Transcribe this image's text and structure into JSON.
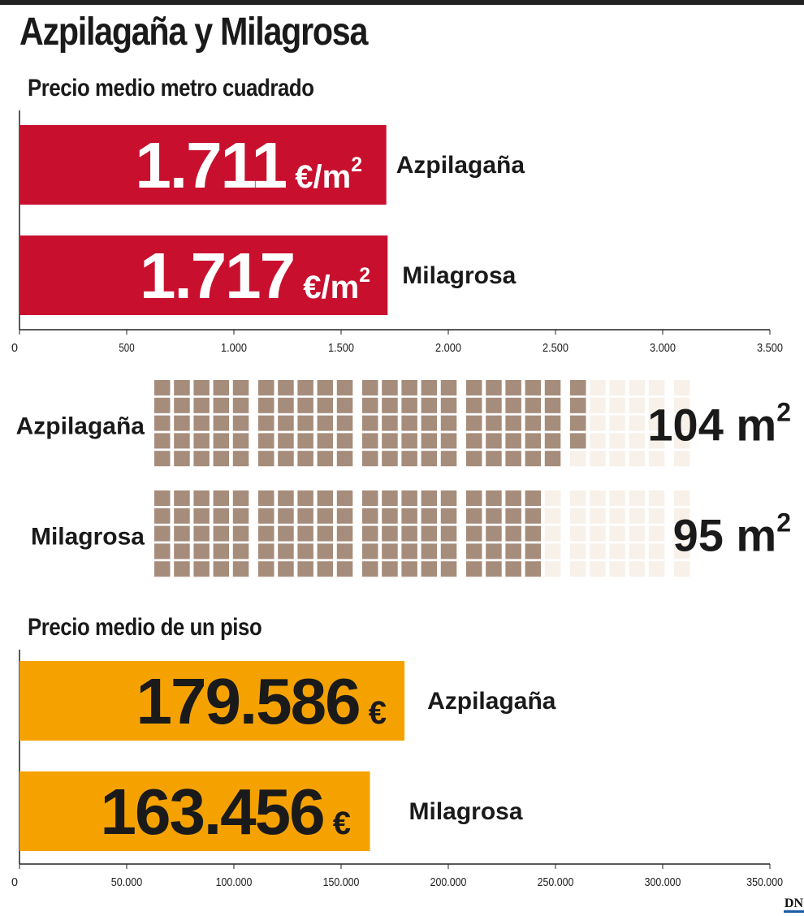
{
  "title": "Azpilagaña y Milagrosa",
  "colors": {
    "price_bar": "#c8102e",
    "flat_bar": "#f5a200",
    "area_filled": "#a68c7b",
    "area_empty": "#f7f1ea"
  },
  "logo": "DN",
  "chart_data": [
    {
      "type": "bar",
      "orientation": "horizontal",
      "title": "Precio medio metro cuadrado",
      "categories": [
        "Azpilagaña",
        "Milagrosa"
      ],
      "values": [
        1711,
        1717
      ],
      "value_labels": [
        "1.711",
        "1.717"
      ],
      "unit_label": "€/m",
      "unit_sup": "2",
      "xlim": [
        0,
        3500
      ],
      "xticks": [
        0,
        500,
        1000,
        1500,
        2000,
        2500,
        3000,
        3500
      ],
      "xtick_labels": [
        "0",
        "500",
        "1.000",
        "1.500",
        "2.000",
        "2.500",
        "3.000",
        "3.500"
      ]
    },
    {
      "type": "waffle",
      "categories": [
        "Azpilagaña",
        "Milagrosa"
      ],
      "values": [
        104,
        95
      ],
      "value_labels": [
        "104 m",
        "95 m"
      ],
      "unit_sup": "2",
      "total_squares": 130,
      "rows": 5,
      "group_columns": 5
    },
    {
      "type": "bar",
      "orientation": "horizontal",
      "title": "Precio medio de un piso",
      "categories": [
        "Azpilagaña",
        "Milagrosa"
      ],
      "values": [
        179586,
        163456
      ],
      "value_labels": [
        "179.586",
        "163.456"
      ],
      "unit_label": "€",
      "xlim": [
        0,
        350000
      ],
      "xticks": [
        0,
        50000,
        100000,
        150000,
        200000,
        250000,
        300000,
        350000
      ],
      "xtick_labels": [
        "0",
        "50.000",
        "100.000",
        "150.000",
        "200.000",
        "250.000",
        "300.000",
        "350.000"
      ]
    }
  ]
}
